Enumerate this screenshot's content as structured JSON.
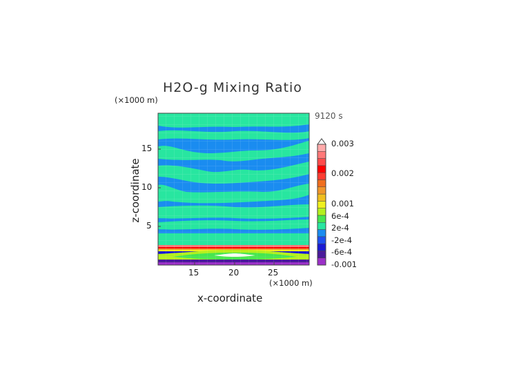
{
  "title": "H2O-g Mixing Ratio",
  "time_label": "9120 s",
  "x_unit": "(×1000 m)",
  "y_unit": "(×1000 m)",
  "x_label": "x-coordinate",
  "y_label": "z-coordinate",
  "x_ticks": [
    "15",
    "20",
    "25"
  ],
  "y_ticks": [
    "5",
    "10",
    "15"
  ],
  "colorbar": {
    "tick_labels": [
      "0.003",
      "0.002",
      "0.001",
      "6e-4",
      "2e-4",
      "-2e-4",
      "-6e-4",
      "-0.001"
    ],
    "colors": [
      "#9b30c8",
      "#4a1a9a",
      "#1a1ad4",
      "#1e50f0",
      "#1a8cf0",
      "#28e6a0",
      "#46e650",
      "#b4f01e",
      "#f0f01e",
      "#f0be1e",
      "#f0962a",
      "#f06e1e",
      "#ff3c32",
      "#ff0000",
      "#ff4b4b",
      "#ff7878",
      "#ffaaaa"
    ],
    "boundaries": [
      -0.0012,
      -0.001,
      -0.0008,
      -0.0006,
      -0.0004,
      -0.0002,
      0.0002,
      0.0004,
      0.0006,
      0.0008,
      0.001,
      0.0012,
      0.0015,
      0.002,
      0.0023,
      0.0026,
      0.0029,
      0.0032
    ]
  },
  "chart_data": {
    "type": "heatmap",
    "title": "H2O-g Mixing Ratio",
    "xlabel": "x-coordinate",
    "ylabel": "z-coordinate",
    "x_unit": "×1000 m",
    "y_unit": "×1000 m",
    "xlim": [
      10,
      29.8
    ],
    "ylim": [
      0,
      19.6
    ],
    "x_ticks": [
      15,
      20,
      25
    ],
    "y_ticks": [
      5,
      10,
      15
    ],
    "time": "9120 s",
    "colorbar_range": [
      -0.0012,
      0.003
    ],
    "bands": [
      {
        "z0": 0.0,
        "z1": 0.7,
        "value": -0.0009,
        "note": "purple/violet near-surface layer"
      },
      {
        "z0": 0.7,
        "z1": 1.3,
        "value": 0.0005,
        "note": "yellow-green lens centered x≈20"
      },
      {
        "z0": 1.3,
        "z1": 1.8,
        "value": -0.0007,
        "note": "dark blue band"
      },
      {
        "z0": 1.8,
        "z1": 2.2,
        "value": 0.0009,
        "note": "orange/yellow band"
      },
      {
        "z0": 2.2,
        "z1": 2.5,
        "value": 0.0028,
        "note": "red/pink band"
      },
      {
        "z0": 2.5,
        "z1": 3.0,
        "value": -0.0001,
        "note": "cyan band"
      },
      {
        "z0": 3.0,
        "z1": 19.6,
        "value_range": [
          -0.0003,
          0.0001
        ],
        "note": "alternating green/blue horizontal layers"
      }
    ]
  }
}
